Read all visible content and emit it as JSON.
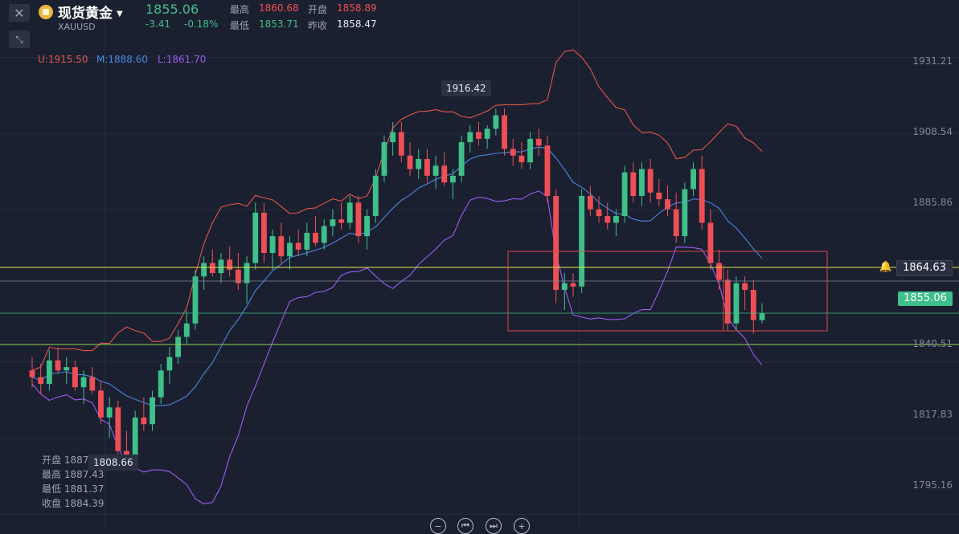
{
  "header": {
    "name": "现货黄金",
    "symbol": "XAUUSD",
    "last_price": "1855.06",
    "change": "-3.41",
    "change_pct": "-0.18%",
    "high_label": "最高",
    "high": "1860.68",
    "open_label": "开盘",
    "open": "1858.89",
    "low_label": "最低",
    "low": "1853.71",
    "prev_close_label": "昨收",
    "prev_close": "1858.47"
  },
  "bollinger": {
    "upper": "U:1915.50",
    "middle": "M:1888.60",
    "lower": "L:1861.70"
  },
  "hover_ohlc": {
    "open": "开盘 1887.07",
    "high": "最高 1887.43",
    "low": "最低 1881.37",
    "close": "收盘 1884.39"
  },
  "markers": {
    "max_label": "1916.42",
    "min_label": "1808.66"
  },
  "y_axis": {
    "ticks": [
      "1931.21",
      "1908.54",
      "1885.86",
      "1840.51",
      "1817.83",
      "1795.16"
    ],
    "alert_price": "1864.63",
    "current_price": "1855.06"
  },
  "icons": {
    "close": "close-icon",
    "collapse": "collapse-icon",
    "gold": "gold-coin-icon",
    "bell": "bell-icon",
    "zoom_out": "zoom-out-icon",
    "prev": "skip-back-icon",
    "next": "skip-forward-icon",
    "zoom_in": "zoom-in-icon"
  },
  "colors": {
    "up": "#3fbf8a",
    "down": "#ee4f55",
    "upper_band": "#e0554a",
    "middle_band": "#4a86e0",
    "lower_band": "#9a5bf0",
    "alert_line": "#e8e34a",
    "price_line": "#3fbf8a",
    "box": "#d8474a"
  },
  "chart_data": {
    "type": "candlestick",
    "y_range": [
      1790,
      1934
    ],
    "candles": [
      [
        1838,
        1842,
        1833,
        1836
      ],
      [
        1836,
        1840,
        1831,
        1834
      ],
      [
        1834,
        1844,
        1832,
        1841
      ],
      [
        1841,
        1845,
        1837,
        1838
      ],
      [
        1838,
        1842,
        1834,
        1839
      ],
      [
        1839,
        1841,
        1832,
        1833
      ],
      [
        1833,
        1838,
        1828,
        1836
      ],
      [
        1836,
        1839,
        1831,
        1832
      ],
      [
        1832,
        1835,
        1822,
        1824
      ],
      [
        1824,
        1830,
        1818,
        1827
      ],
      [
        1827,
        1829,
        1812,
        1814
      ],
      [
        1814,
        1820,
        1809,
        1811
      ],
      [
        1811,
        1826,
        1810,
        1824
      ],
      [
        1824,
        1830,
        1820,
        1822
      ],
      [
        1822,
        1832,
        1820,
        1830
      ],
      [
        1830,
        1840,
        1828,
        1838
      ],
      [
        1838,
        1845,
        1834,
        1842
      ],
      [
        1842,
        1850,
        1840,
        1848
      ],
      [
        1848,
        1856,
        1846,
        1852
      ],
      [
        1852,
        1868,
        1850,
        1866
      ],
      [
        1866,
        1872,
        1862,
        1870
      ],
      [
        1870,
        1874,
        1866,
        1867
      ],
      [
        1867,
        1873,
        1864,
        1871
      ],
      [
        1871,
        1875,
        1866,
        1868
      ],
      [
        1868,
        1873,
        1862,
        1864
      ],
      [
        1864,
        1872,
        1858,
        1870
      ],
      [
        1870,
        1888,
        1868,
        1885
      ],
      [
        1885,
        1888,
        1870,
        1873
      ],
      [
        1873,
        1880,
        1868,
        1878
      ],
      [
        1878,
        1882,
        1870,
        1872
      ],
      [
        1872,
        1878,
        1868,
        1876
      ],
      [
        1876,
        1880,
        1872,
        1874
      ],
      [
        1874,
        1882,
        1872,
        1879
      ],
      [
        1879,
        1884,
        1875,
        1876
      ],
      [
        1876,
        1883,
        1874,
        1881
      ],
      [
        1881,
        1886,
        1878,
        1883
      ],
      [
        1883,
        1888,
        1880,
        1882
      ],
      [
        1882,
        1890,
        1880,
        1888
      ],
      [
        1888,
        1890,
        1876,
        1878
      ],
      [
        1878,
        1886,
        1874,
        1884
      ],
      [
        1884,
        1898,
        1882,
        1896
      ],
      [
        1896,
        1908,
        1894,
        1906
      ],
      [
        1906,
        1912,
        1902,
        1909
      ],
      [
        1909,
        1912,
        1900,
        1902
      ],
      [
        1902,
        1906,
        1896,
        1898
      ],
      [
        1898,
        1904,
        1895,
        1901
      ],
      [
        1901,
        1904,
        1894,
        1896
      ],
      [
        1896,
        1902,
        1892,
        1899
      ],
      [
        1899,
        1903,
        1893,
        1894
      ],
      [
        1894,
        1898,
        1889,
        1896
      ],
      [
        1896,
        1908,
        1894,
        1906
      ],
      [
        1906,
        1911,
        1903,
        1909
      ],
      [
        1909,
        1912,
        1905,
        1907
      ],
      [
        1907,
        1911,
        1904,
        1910
      ],
      [
        1910,
        1916,
        1908,
        1914
      ],
      [
        1914,
        1916,
        1902,
        1904
      ],
      [
        1904,
        1907,
        1899,
        1902
      ],
      [
        1902,
        1906,
        1898,
        1900
      ],
      [
        1900,
        1909,
        1898,
        1907
      ],
      [
        1907,
        1910,
        1902,
        1905
      ],
      [
        1905,
        1908,
        1888,
        1890
      ],
      [
        1890,
        1892,
        1858,
        1862
      ],
      [
        1862,
        1867,
        1856,
        1864
      ],
      [
        1864,
        1867,
        1860,
        1863
      ],
      [
        1863,
        1892,
        1861,
        1890
      ],
      [
        1890,
        1893,
        1884,
        1886
      ],
      [
        1886,
        1890,
        1882,
        1884
      ],
      [
        1884,
        1888,
        1880,
        1882
      ],
      [
        1882,
        1886,
        1878,
        1884
      ],
      [
        1884,
        1899,
        1882,
        1897
      ],
      [
        1897,
        1900,
        1888,
        1890
      ],
      [
        1890,
        1900,
        1887,
        1898
      ],
      [
        1898,
        1901,
        1888,
        1891
      ],
      [
        1891,
        1895,
        1887,
        1889
      ],
      [
        1889,
        1893,
        1884,
        1886
      ],
      [
        1886,
        1891,
        1876,
        1878
      ],
      [
        1878,
        1894,
        1876,
        1892
      ],
      [
        1892,
        1900,
        1890,
        1898
      ],
      [
        1898,
        1902,
        1880,
        1882
      ],
      [
        1882,
        1886,
        1868,
        1870
      ],
      [
        1870,
        1874,
        1862,
        1865
      ],
      [
        1865,
        1868,
        1850,
        1852
      ],
      [
        1852,
        1866,
        1850,
        1864
      ],
      [
        1864,
        1866,
        1856,
        1862
      ],
      [
        1862,
        1865,
        1849,
        1853
      ],
      [
        1853,
        1858,
        1852,
        1855
      ]
    ]
  }
}
